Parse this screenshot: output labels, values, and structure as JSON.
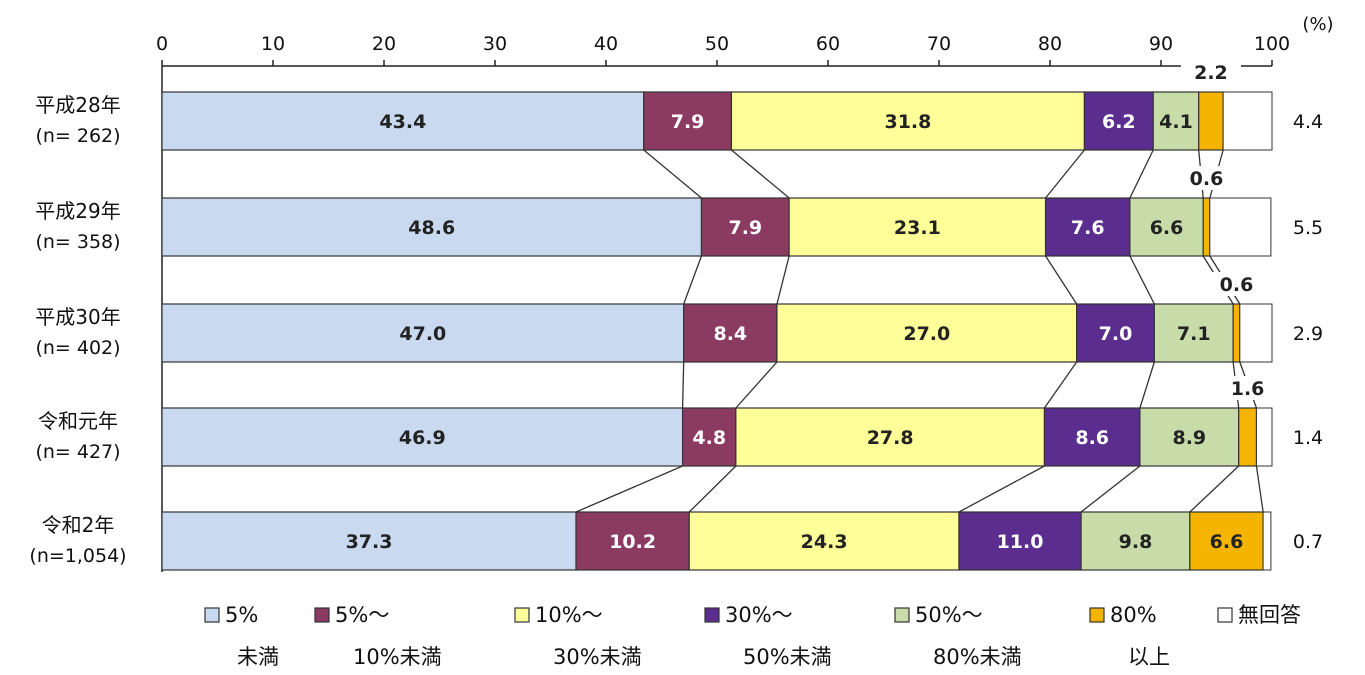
{
  "chart_data": {
    "type": "bar",
    "stacked": true,
    "orientation": "horizontal",
    "unit_label": "(%)",
    "xlim": [
      0,
      100
    ],
    "x_ticks": [
      "0",
      "10",
      "20",
      "30",
      "40",
      "50",
      "60",
      "70",
      "80",
      "90",
      "100"
    ],
    "categories": [
      {
        "line1": "平成28年",
        "line2": "(n=  262)"
      },
      {
        "line1": "平成29年",
        "line2": "(n=  358)"
      },
      {
        "line1": "平成30年",
        "line2": "(n=  402)"
      },
      {
        "line1": "令和元年",
        "line2": "(n=  427)"
      },
      {
        "line1": "令和2年",
        "line2": "(n=1,054)"
      }
    ],
    "series": [
      {
        "name": "5%\n未満",
        "color": "#c9daf0",
        "values": [
          43.4,
          48.6,
          47.0,
          46.9,
          37.3
        ],
        "labels": [
          "43.4",
          "48.6",
          "47.0",
          "46.9",
          "37.3"
        ]
      },
      {
        "name": "5%～\n10%未満",
        "color": "#8b3a62",
        "values": [
          7.9,
          7.9,
          8.4,
          4.8,
          10.2
        ],
        "labels": [
          "7.9",
          "7.9",
          "8.4",
          "4.8",
          "10.2"
        ]
      },
      {
        "name": "10%～\n30%未満",
        "color": "#ffff99",
        "values": [
          31.8,
          23.1,
          27.0,
          27.8,
          24.3
        ],
        "labels": [
          "31.8",
          "23.1",
          "27.0",
          "27.8",
          "24.3"
        ]
      },
      {
        "name": "30%～\n50%未満",
        "color": "#5b2d8e",
        "values": [
          6.2,
          7.6,
          7.0,
          8.6,
          11.0
        ],
        "labels": [
          "6.2",
          "7.6",
          "7.0",
          "8.6",
          "11.0"
        ]
      },
      {
        "name": "50%～\n80%未満",
        "color": "#c8dcaa",
        "values": [
          4.1,
          6.6,
          7.1,
          8.9,
          9.8
        ],
        "labels": [
          "4.1",
          "6.6",
          "7.1",
          "8.9",
          "9.8"
        ]
      },
      {
        "name": "80%\n以上",
        "color": "#f5b400",
        "values": [
          2.2,
          0.6,
          0.6,
          1.6,
          6.6
        ],
        "labels": [
          "2.2",
          "0.6",
          "0.6",
          "1.6",
          "6.6"
        ]
      },
      {
        "name": "無回答",
        "color": "#ffffff",
        "values": [
          4.4,
          5.5,
          2.9,
          1.4,
          0.7
        ],
        "labels": [
          "4.4",
          "5.5",
          "2.9",
          "1.4",
          "0.7"
        ]
      }
    ],
    "legend_position": "bottom",
    "grid": false,
    "connector_lines": true
  }
}
